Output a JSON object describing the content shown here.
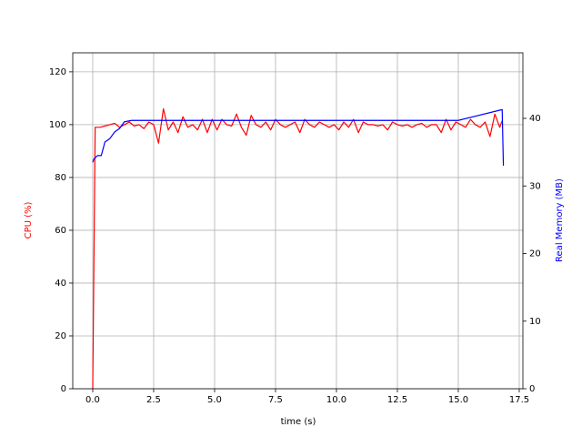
{
  "chart_data": {
    "type": "line",
    "xlabel": "time (s)",
    "ylabel": "CPU (%)",
    "y2label": "Real Memory (MB)",
    "ylabel_color": "#ff0000",
    "y2label_color": "#0000ff",
    "xlim": [
      -0.82,
      17.65
    ],
    "ylim": [
      0,
      127.2
    ],
    "y2lim": [
      0,
      49.7
    ],
    "xticks": [
      {
        "value": 0,
        "label": "0.0"
      },
      {
        "value": 2.5,
        "label": "2.5"
      },
      {
        "value": 5,
        "label": "5.0"
      },
      {
        "value": 7.5,
        "label": "7.5"
      },
      {
        "value": 10,
        "label": "10.0"
      },
      {
        "value": 12.5,
        "label": "12.5"
      },
      {
        "value": 15,
        "label": "15.0"
      },
      {
        "value": 17.5,
        "label": "17.5"
      }
    ],
    "yticks": [
      0,
      20,
      40,
      60,
      80,
      100,
      120
    ],
    "y2ticks": [
      0,
      10,
      20,
      30,
      40
    ],
    "grid": true,
    "series": [
      {
        "color": "#ff0000",
        "axis": "y",
        "x": [
          0,
          0.1,
          0.3,
          0.5,
          0.7,
          0.9,
          1.1,
          1.3,
          1.5,
          1.7,
          1.9,
          2.1,
          2.3,
          2.5,
          2.7,
          2.9,
          3.1,
          3.3,
          3.5,
          3.7,
          3.9,
          4.1,
          4.3,
          4.5,
          4.7,
          4.9,
          5.1,
          5.3,
          5.5,
          5.7,
          5.9,
          6.1,
          6.3,
          6.5,
          6.7,
          6.9,
          7.1,
          7.3,
          7.5,
          7.7,
          7.9,
          8.1,
          8.3,
          8.5,
          8.7,
          8.9,
          9.1,
          9.3,
          9.5,
          9.7,
          9.9,
          10.1,
          10.3,
          10.5,
          10.7,
          10.9,
          11.1,
          11.3,
          11.5,
          11.7,
          11.9,
          12.1,
          12.3,
          12.5,
          12.7,
          12.9,
          13.1,
          13.3,
          13.5,
          13.7,
          13.9,
          14.1,
          14.3,
          14.5,
          14.7,
          14.9,
          15.1,
          15.3,
          15.5,
          15.7,
          15.9,
          16.1,
          16.3,
          16.5,
          16.7,
          16.8
        ],
        "values": [
          0,
          99,
          99,
          99.5,
          100,
          100.5,
          99,
          100,
          101,
          99.5,
          100,
          98.5,
          101,
          100,
          93,
          106,
          98,
          101,
          97,
          103,
          99,
          100,
          98,
          102,
          97,
          102,
          98,
          102,
          100,
          99.5,
          104,
          99,
          96,
          103.5,
          100,
          99,
          101,
          98,
          102,
          100,
          99,
          100,
          101,
          97,
          102,
          100,
          99,
          101,
          100,
          99,
          100,
          98,
          101,
          99,
          102,
          97,
          101,
          100,
          100,
          99.5,
          100,
          98,
          101,
          100,
          99.5,
          100,
          99,
          100,
          100.5,
          99,
          100,
          100,
          97,
          102,
          98,
          101,
          100,
          99,
          102,
          100,
          99,
          101,
          95.5,
          104,
          99,
          101.5
        ]
      },
      {
        "color": "#0000ff",
        "axis": "y2",
        "x": [
          0,
          0.05,
          0.2,
          0.35,
          0.5,
          0.7,
          0.9,
          1.1,
          1.3,
          1.6,
          2.2,
          2.4,
          15,
          16.8,
          16.85
        ],
        "values": [
          33.5,
          34,
          34.5,
          34.5,
          36.5,
          37,
          38,
          38.5,
          39.5,
          39.7,
          39.7,
          39.7,
          39.7,
          41.3,
          33
        ]
      }
    ]
  }
}
